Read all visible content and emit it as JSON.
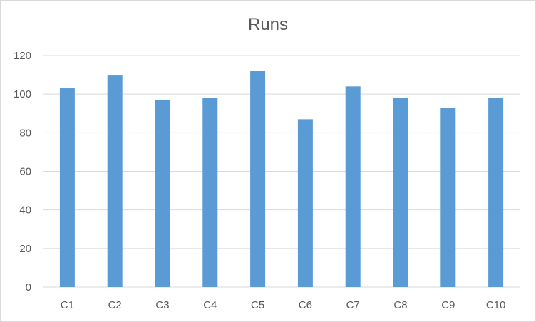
{
  "chart_data": {
    "type": "bar",
    "title": "Runs",
    "categories": [
      "C1",
      "C2",
      "C3",
      "C4",
      "C5",
      "C6",
      "C7",
      "C8",
      "C9",
      "C10"
    ],
    "values": [
      103,
      110,
      97,
      98,
      112,
      87,
      104,
      98,
      93,
      98
    ],
    "xlabel": "",
    "ylabel": "",
    "ylim": [
      0,
      120
    ],
    "yticks": [
      "0",
      "20",
      "40",
      "60",
      "80",
      "100",
      "120"
    ],
    "grid": true,
    "legend": "none",
    "bar_color": "#5b9bd5",
    "grid_color": "#d9d9d9",
    "text_color": "#595959"
  }
}
